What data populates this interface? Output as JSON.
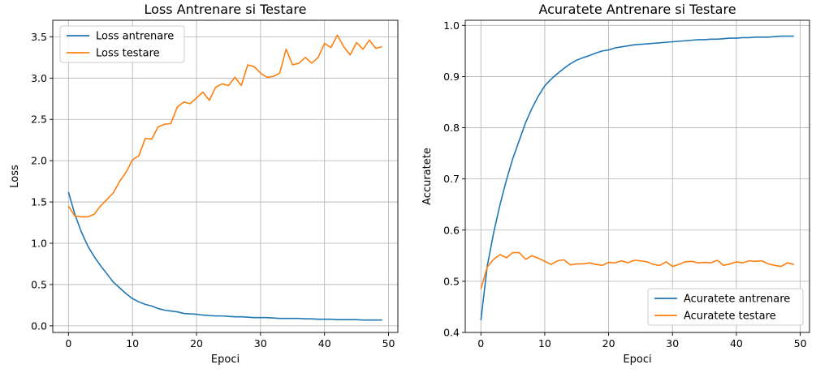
{
  "chart_data": [
    {
      "type": "line",
      "title": "Loss Antrenare si Testare",
      "xlabel": "Epoci",
      "ylabel": "Loss",
      "xlim": [
        -2.45,
        51.45
      ],
      "ylim": [
        -0.08,
        3.7
      ],
      "xticks": [
        0,
        10,
        20,
        30,
        40,
        50
      ],
      "yticks": [
        0.0,
        0.5,
        1.0,
        1.5,
        2.0,
        2.5,
        3.0,
        3.5
      ],
      "ytick_labels": [
        "0.0",
        "0.5",
        "1.0",
        "1.5",
        "2.0",
        "2.5",
        "3.0",
        "3.5"
      ],
      "grid": true,
      "legend": "top-left",
      "x": [
        0,
        1,
        2,
        3,
        4,
        5,
        6,
        7,
        8,
        9,
        10,
        11,
        12,
        13,
        14,
        15,
        16,
        17,
        18,
        19,
        20,
        21,
        22,
        23,
        24,
        25,
        26,
        27,
        28,
        29,
        30,
        31,
        32,
        33,
        34,
        35,
        36,
        37,
        38,
        39,
        40,
        41,
        42,
        43,
        44,
        45,
        46,
        47,
        48,
        49
      ],
      "series": [
        {
          "name": "Loss antrenare",
          "color": "#1f77b4",
          "values": [
            1.62,
            1.35,
            1.14,
            0.97,
            0.84,
            0.73,
            0.63,
            0.53,
            0.46,
            0.39,
            0.33,
            0.29,
            0.26,
            0.24,
            0.21,
            0.19,
            0.18,
            0.17,
            0.15,
            0.145,
            0.14,
            0.13,
            0.125,
            0.12,
            0.12,
            0.115,
            0.11,
            0.11,
            0.105,
            0.1,
            0.1,
            0.1,
            0.095,
            0.09,
            0.09,
            0.09,
            0.09,
            0.085,
            0.085,
            0.08,
            0.08,
            0.08,
            0.075,
            0.075,
            0.075,
            0.075,
            0.07,
            0.07,
            0.07,
            0.07
          ]
        },
        {
          "name": "Loss testare",
          "color": "#ff7f0e",
          "values": [
            1.45,
            1.33,
            1.32,
            1.32,
            1.35,
            1.45,
            1.53,
            1.61,
            1.75,
            1.86,
            2.01,
            2.06,
            2.27,
            2.26,
            2.41,
            2.44,
            2.45,
            2.65,
            2.71,
            2.69,
            2.76,
            2.83,
            2.73,
            2.89,
            2.93,
            2.91,
            3.01,
            2.91,
            3.16,
            3.14,
            3.06,
            3.01,
            3.02,
            3.06,
            3.35,
            3.16,
            3.18,
            3.25,
            3.18,
            3.25,
            3.42,
            3.37,
            3.52,
            3.38,
            3.28,
            3.43,
            3.35,
            3.46,
            3.36,
            3.38
          ]
        }
      ]
    },
    {
      "type": "line",
      "title": "Acuratete Antrenare si Testare",
      "xlabel": "Epoci",
      "ylabel": "Accuratete",
      "xlim": [
        -2.45,
        51.45
      ],
      "ylim": [
        0.4,
        1.01
      ],
      "xticks": [
        0,
        10,
        20,
        30,
        40,
        50
      ],
      "yticks": [
        0.4,
        0.5,
        0.6,
        0.7,
        0.8,
        0.9,
        1.0
      ],
      "ytick_labels": [
        "0.4",
        "0.5",
        "0.6",
        "0.7",
        "0.8",
        "0.9",
        "1.0"
      ],
      "grid": true,
      "legend": "bottom-right",
      "x": [
        0,
        1,
        2,
        3,
        4,
        5,
        6,
        7,
        8,
        9,
        10,
        11,
        12,
        13,
        14,
        15,
        16,
        17,
        18,
        19,
        20,
        21,
        22,
        23,
        24,
        25,
        26,
        27,
        28,
        29,
        30,
        31,
        32,
        33,
        34,
        35,
        36,
        37,
        38,
        39,
        40,
        41,
        42,
        43,
        44,
        45,
        46,
        47,
        48,
        49
      ],
      "series": [
        {
          "name": "Acuratete antrenare",
          "color": "#1f77b4",
          "values": [
            0.424,
            0.53,
            0.595,
            0.65,
            0.698,
            0.74,
            0.775,
            0.81,
            0.838,
            0.862,
            0.882,
            0.895,
            0.906,
            0.916,
            0.925,
            0.932,
            0.937,
            0.941,
            0.946,
            0.95,
            0.952,
            0.956,
            0.958,
            0.96,
            0.962,
            0.963,
            0.964,
            0.965,
            0.966,
            0.967,
            0.968,
            0.969,
            0.97,
            0.971,
            0.972,
            0.972,
            0.973,
            0.973,
            0.974,
            0.975,
            0.975,
            0.976,
            0.976,
            0.977,
            0.977,
            0.977,
            0.978,
            0.979,
            0.979,
            0.979
          ]
        },
        {
          "name": "Acuratete testare",
          "color": "#ff7f0e",
          "values": [
            0.485,
            0.528,
            0.543,
            0.552,
            0.546,
            0.556,
            0.556,
            0.543,
            0.55,
            0.545,
            0.539,
            0.533,
            0.54,
            0.542,
            0.532,
            0.534,
            0.534,
            0.536,
            0.533,
            0.531,
            0.537,
            0.536,
            0.54,
            0.536,
            0.541,
            0.54,
            0.538,
            0.533,
            0.531,
            0.538,
            0.529,
            0.533,
            0.538,
            0.539,
            0.536,
            0.537,
            0.536,
            0.541,
            0.531,
            0.534,
            0.538,
            0.536,
            0.54,
            0.539,
            0.54,
            0.534,
            0.531,
            0.529,
            0.536,
            0.533
          ]
        }
      ]
    }
  ]
}
